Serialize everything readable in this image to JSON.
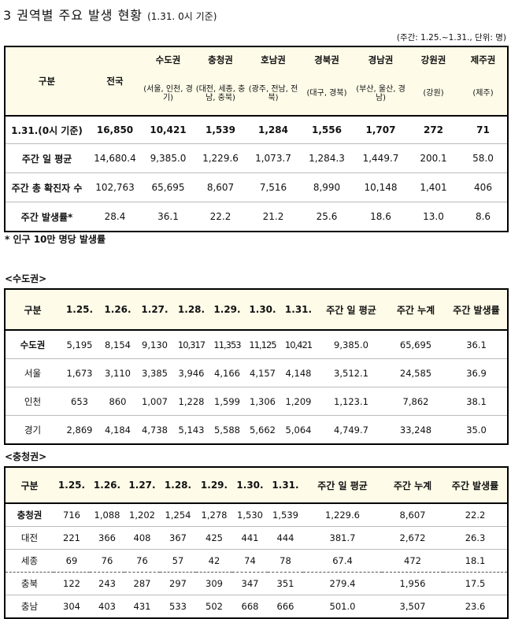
{
  "title": {
    "main": "3  권역별 주요 발생 현황",
    "sub": "(1.31. 0시 기준)"
  },
  "unit_note": "(주간: 1.25.~1.31., 단위: 명)",
  "table1": {
    "header_label": "구분",
    "header_nation": "전국",
    "regions": [
      {
        "name": "수도권",
        "sub": "(서울, 인천, 경기)"
      },
      {
        "name": "충청권",
        "sub": "(대전, 세종, 충남, 충북)"
      },
      {
        "name": "호남권",
        "sub": "(광주, 전남, 전북)"
      },
      {
        "name": "경북권",
        "sub": "(대구, 경북)"
      },
      {
        "name": "경남권",
        "sub": "(부산, 울산, 경남)"
      },
      {
        "name": "강원권",
        "sub": "(강원)"
      },
      {
        "name": "제주권",
        "sub": "(제주)"
      }
    ],
    "rows": [
      {
        "label": "1.31.(0시 기준)",
        "values": [
          "16,850",
          "10,421",
          "1,539",
          "1,284",
          "1,556",
          "1,707",
          "272",
          "71"
        ]
      },
      {
        "label": "주간 일 평균",
        "values": [
          "14,680.4",
          "9,385.0",
          "1,229.6",
          "1,073.7",
          "1,284.3",
          "1,449.7",
          "200.1",
          "58.0"
        ]
      },
      {
        "label": "주간 총 확진자 수",
        "values": [
          "102,763",
          "65,695",
          "8,607",
          "7,516",
          "8,990",
          "10,148",
          "1,401",
          "406"
        ]
      },
      {
        "label": "주간 발생률*",
        "values": [
          "28.4",
          "36.1",
          "22.2",
          "21.2",
          "25.6",
          "18.6",
          "13.0",
          "8.6"
        ]
      }
    ]
  },
  "footnote": "* 인구 10만 명당 발생률",
  "capital": {
    "section_label": "<수도권>",
    "headers": [
      "구분",
      "1.25.",
      "1.26.",
      "1.27.",
      "1.28.",
      "1.29.",
      "1.30.",
      "1.31.",
      "주간 일 평균",
      "주간 누계",
      "주간 발생률"
    ],
    "rows": [
      {
        "label": "수도권",
        "values": [
          "5,195",
          "8,154",
          "9,130",
          "10,317",
          "11,353",
          "11,125",
          "10,421",
          "9,385.0",
          "65,695",
          "36.1"
        ]
      },
      {
        "label": "서울",
        "values": [
          "1,673",
          "3,110",
          "3,385",
          "3,946",
          "4,166",
          "4,157",
          "4,148",
          "3,512.1",
          "24,585",
          "36.9"
        ]
      },
      {
        "label": "인천",
        "values": [
          "653",
          "860",
          "1,007",
          "1,228",
          "1,599",
          "1,306",
          "1,209",
          "1,123.1",
          "7,862",
          "38.1"
        ]
      },
      {
        "label": "경기",
        "values": [
          "2,869",
          "4,184",
          "4,738",
          "5,143",
          "5,588",
          "5,662",
          "5,064",
          "4,749.7",
          "33,248",
          "35.0"
        ]
      }
    ]
  },
  "chungcheong": {
    "section_label": "<충청권>",
    "headers": [
      "구분",
      "1.25.",
      "1.26.",
      "1.27.",
      "1.28.",
      "1.29.",
      "1.30.",
      "1.31.",
      "주간 일 평균",
      "주간 누계",
      "주간 발생률"
    ],
    "rows": [
      {
        "label": "충청권",
        "values": [
          "716",
          "1,088",
          "1,202",
          "1,254",
          "1,278",
          "1,530",
          "1,539",
          "1,229.6",
          "8,607",
          "22.2"
        ]
      },
      {
        "label": "대전",
        "values": [
          "221",
          "366",
          "408",
          "367",
          "425",
          "441",
          "444",
          "381.7",
          "2,672",
          "26.3"
        ]
      },
      {
        "label": "세종",
        "values": [
          "69",
          "76",
          "76",
          "57",
          "42",
          "74",
          "78",
          "67.4",
          "472",
          "18.1"
        ]
      },
      {
        "label": "충북",
        "values": [
          "122",
          "243",
          "287",
          "297",
          "309",
          "347",
          "351",
          "279.4",
          "1,956",
          "17.5"
        ]
      },
      {
        "label": "충남",
        "values": [
          "304",
          "403",
          "431",
          "533",
          "502",
          "668",
          "666",
          "501.0",
          "3,507",
          "23.6"
        ]
      }
    ]
  }
}
